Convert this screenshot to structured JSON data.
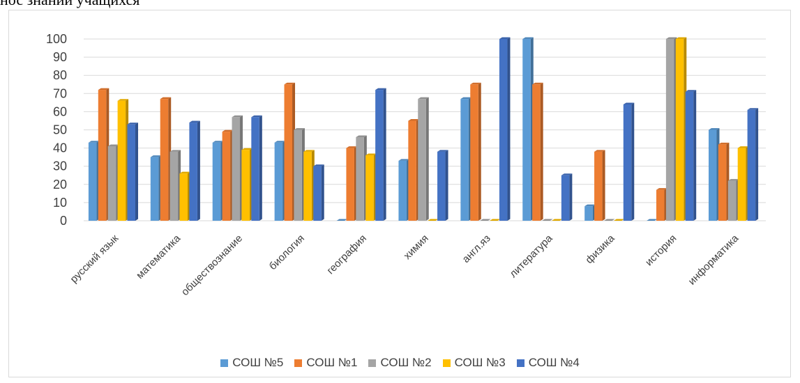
{
  "caption": "нос знаний учащихся",
  "chart_data": {
    "type": "bar",
    "title": "",
    "xlabel": "",
    "ylabel": "",
    "ylim": [
      0,
      100
    ],
    "yticks": [
      0,
      10,
      20,
      30,
      40,
      50,
      60,
      70,
      80,
      90,
      100
    ],
    "grid": true,
    "legend": "bottom",
    "style": "3d-clustered-column",
    "categories": [
      "русский язык",
      "математика",
      "обществознание",
      "биология",
      "география",
      "химия",
      "англ.яз",
      "литература",
      "физика",
      "история",
      "информатика"
    ],
    "series": [
      {
        "name": "СОШ №5",
        "color": "#5b9bd5",
        "values": [
          43,
          35,
          43,
          43,
          0,
          33,
          67,
          100,
          8,
          0,
          50
        ]
      },
      {
        "name": "СОШ №1",
        "color": "#ed7d31",
        "values": [
          72,
          67,
          49,
          75,
          40,
          55,
          75,
          75,
          38,
          17,
          42
        ]
      },
      {
        "name": "СОШ №2",
        "color": "#a5a5a5",
        "values": [
          41,
          38,
          57,
          50,
          46,
          67,
          0,
          0,
          0,
          100,
          22
        ]
      },
      {
        "name": "СОШ №3",
        "color": "#ffc000",
        "values": [
          66,
          26,
          39,
          38,
          36,
          0,
          0,
          0,
          0,
          100,
          40
        ]
      },
      {
        "name": "СОШ №4",
        "color": "#4472c4",
        "values": [
          53,
          54,
          57,
          30,
          72,
          38,
          100,
          25,
          64,
          71,
          61
        ]
      }
    ]
  }
}
